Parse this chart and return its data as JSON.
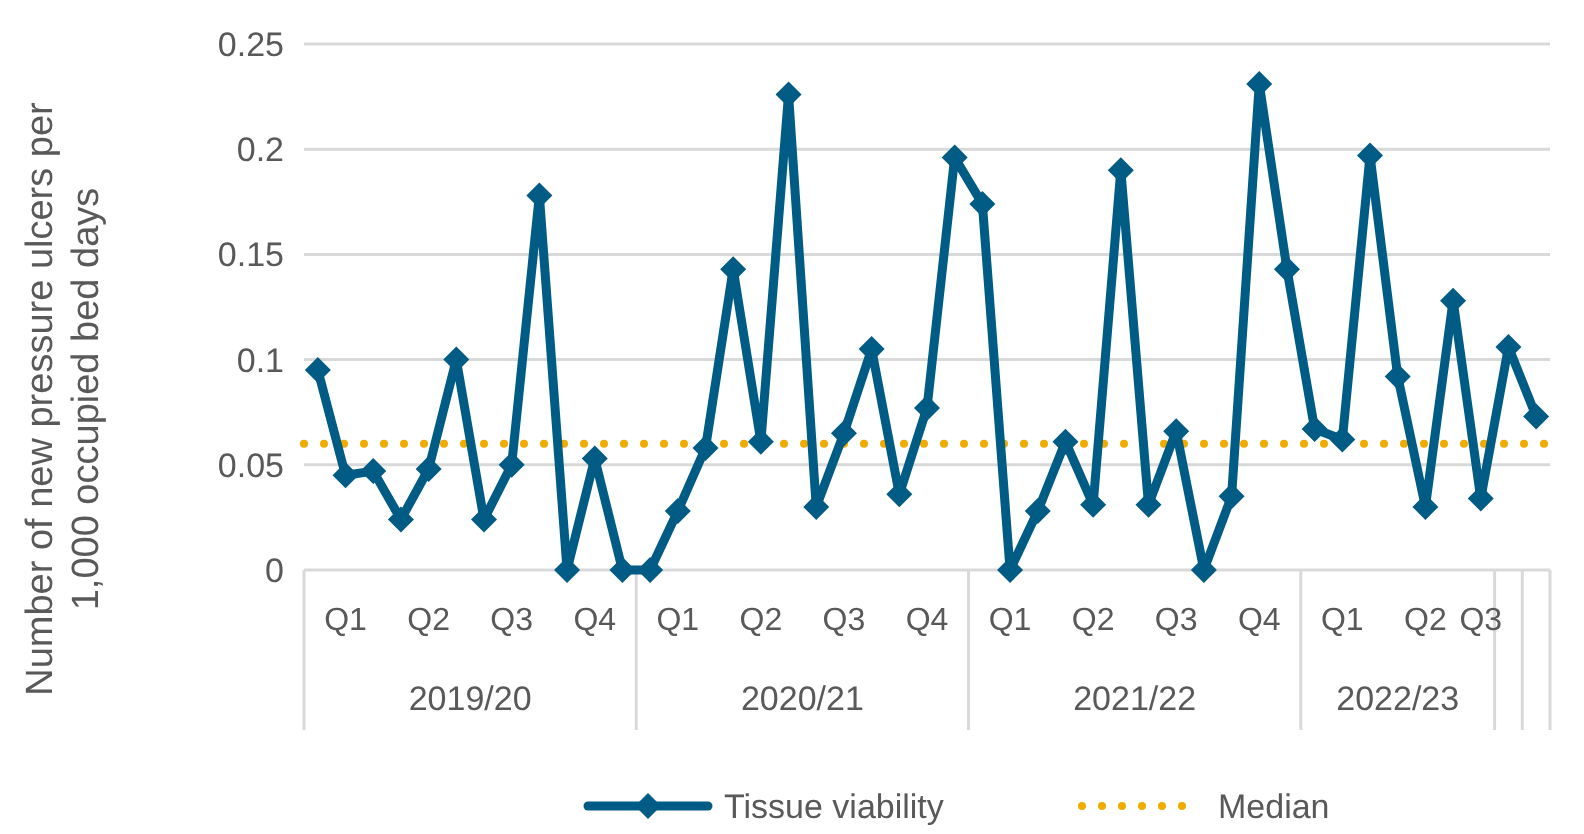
{
  "chart_data": {
    "type": "line",
    "ylabel": "Number of new pressure ulcers per\n1,000 occupied bed days",
    "categories": [
      null,
      "Q1",
      null,
      null,
      "Q2",
      null,
      null,
      "Q3",
      null,
      null,
      "Q4",
      null,
      null,
      "Q1",
      null,
      null,
      "Q2",
      null,
      null,
      "Q3",
      null,
      null,
      "Q4",
      null,
      null,
      "Q1",
      null,
      null,
      "Q2",
      null,
      null,
      "Q3",
      null,
      null,
      "Q4",
      null,
      null,
      "Q1",
      null,
      null,
      "Q2",
      null,
      "Q3",
      null,
      null
    ],
    "series": [
      {
        "name": "Tissue viability",
        "color": "#005b85",
        "values": [
          0.095,
          0.045,
          0.047,
          0.024,
          0.048,
          0.1,
          0.024,
          0.05,
          0.178,
          0,
          0.053,
          0,
          0,
          0.028,
          0.058,
          0.143,
          0.061,
          0.226,
          0.03,
          0.065,
          0.105,
          0.036,
          0.077,
          0.196,
          0.174,
          0,
          0.028,
          0.061,
          0.031,
          0.19,
          0.031,
          0.066,
          0,
          0.035,
          0.231,
          0.143,
          0.067,
          0.062,
          0.197,
          0.092,
          0.03,
          0.128,
          0.034,
          0.106,
          0.073
        ]
      }
    ],
    "ref_lines": [
      {
        "axis": "y",
        "value": 0.06,
        "label": "Median",
        "color": "#f0ab00",
        "line_style": "dotted"
      }
    ],
    "annotations": [
      "2019/20",
      "2020/21",
      "2021/22",
      "2022/23"
    ],
    "ylim": [
      0,
      0.25
    ],
    "yticks": [
      0,
      0.05,
      0.1,
      0.15,
      0.2,
      0.25
    ],
    "grid": "y",
    "legend": "bottom",
    "marker": "diamond",
    "line_style": "solid"
  }
}
